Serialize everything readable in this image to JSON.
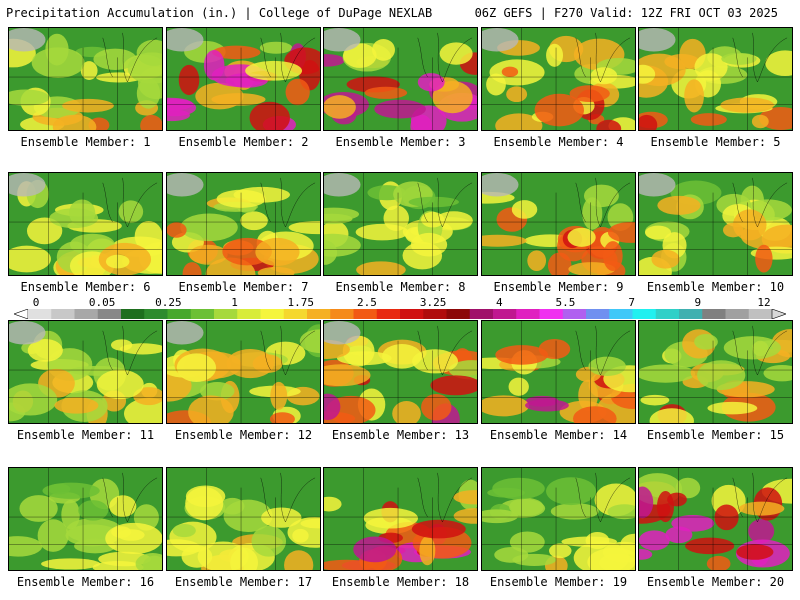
{
  "header": {
    "left_title": "Precipitation Accumulation (in.) | College of DuPage NEXLAB",
    "right_title": "06Z GEFS | F270 Valid: 12Z FRI OCT 03 2025"
  },
  "panels": [
    {
      "label": "Ensemble Member: 1",
      "intensity": 0.35
    },
    {
      "label": "Ensemble Member: 2",
      "intensity": 0.85
    },
    {
      "label": "Ensemble Member: 3",
      "intensity": 0.75
    },
    {
      "label": "Ensemble Member: 4",
      "intensity": 0.5
    },
    {
      "label": "Ensemble Member: 5",
      "intensity": 0.45
    },
    {
      "label": "Ensemble Member: 6",
      "intensity": 0.35
    },
    {
      "label": "Ensemble Member: 7",
      "intensity": 0.5
    },
    {
      "label": "Ensemble Member: 8",
      "intensity": 0.3
    },
    {
      "label": "Ensemble Member: 9",
      "intensity": 0.55
    },
    {
      "label": "Ensemble Member: 10",
      "intensity": 0.4
    },
    {
      "label": "Ensemble Member: 11",
      "intensity": 0.35
    },
    {
      "label": "Ensemble Member: 12",
      "intensity": 0.4
    },
    {
      "label": "Ensemble Member: 13",
      "intensity": 0.55
    },
    {
      "label": "Ensemble Member: 14",
      "intensity": 0.6
    },
    {
      "label": "Ensemble Member: 15",
      "intensity": 0.45
    },
    {
      "label": "Ensemble Member: 16",
      "intensity": 0.25
    },
    {
      "label": "Ensemble Member: 17",
      "intensity": 0.35
    },
    {
      "label": "Ensemble Member: 18",
      "intensity": 0.7
    },
    {
      "label": "Ensemble Member: 19",
      "intensity": 0.3
    },
    {
      "label": "Ensemble Member: 20",
      "intensity": 0.8
    }
  ],
  "colorbar": {
    "labels": [
      "0",
      "0.05",
      "0.25",
      "1",
      "1.75",
      "2.5",
      "3.25",
      "4",
      "5.5",
      "7",
      "9",
      "12"
    ],
    "colors": [
      "#e0e0e0",
      "#c8c8c8",
      "#a8a8a8",
      "#888888",
      "#1e6e1e",
      "#2e8b2e",
      "#47a82c",
      "#6cc035",
      "#a6d93c",
      "#d8ec3a",
      "#f5f53c",
      "#f5d82e",
      "#f5b022",
      "#f58a1a",
      "#f25a14",
      "#e82a10",
      "#d01010",
      "#b00c0c",
      "#8c0808",
      "#a0106a",
      "#c01890",
      "#e020c0",
      "#f030f0",
      "#b060f0",
      "#7090f0",
      "#40c8f8",
      "#20f0f0",
      "#30d0c8",
      "#40b0b0",
      "#808080",
      "#a0a0a0",
      "#c0c0c0"
    ]
  }
}
